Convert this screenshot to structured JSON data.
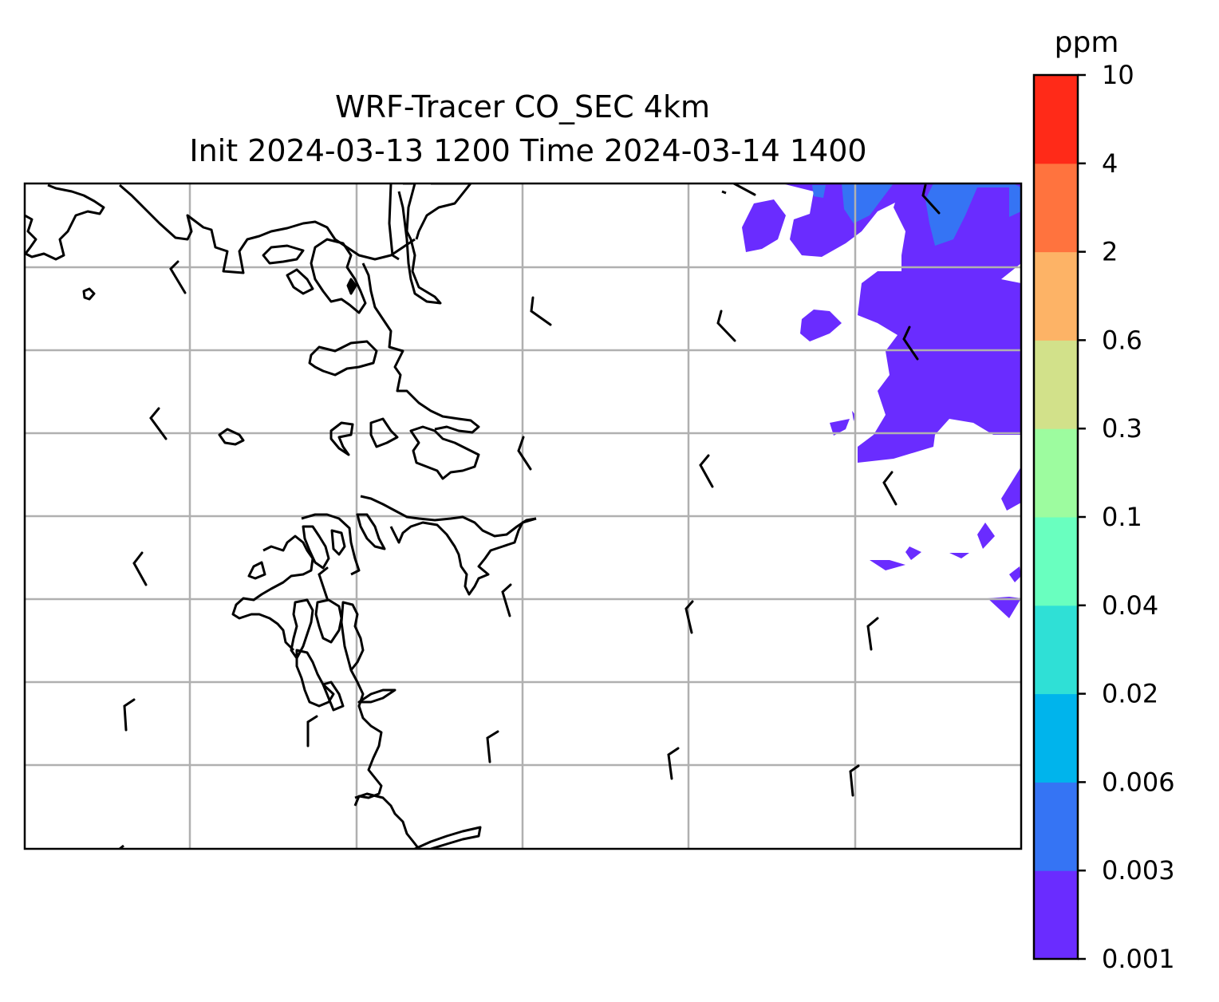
{
  "title": {
    "line1": "WRF-Tracer CO_SEC 4km",
    "line2": "Init 2024-03-13 1200 Time 2024-03-14 1400"
  },
  "map": {
    "gridlines": true,
    "coastline_color": "#000000",
    "gridline_color": "#b0b0b0",
    "barb_count": 21
  },
  "colorbar": {
    "units": "ppm",
    "levels": [
      "0.001",
      "0.003",
      "0.006",
      "0.02",
      "0.04",
      "0.1",
      "0.3",
      "0.6",
      "2",
      "4",
      "10"
    ],
    "colors": [
      "#6a2cff",
      "#3574f4",
      "#00b4ec",
      "#2fe0d6",
      "#69ffbf",
      "#9dfc9f",
      "#d2e18a",
      "#fdb366",
      "#ff733e",
      "#ff2a18"
    ]
  },
  "chart_data": {
    "type": "heatmap",
    "variable": "CO_SEC",
    "units": "ppm",
    "title": "WRF-Tracer CO_SEC 4km\nInit 2024-03-13 1200 Time 2024-03-14 1400",
    "levels": [
      0.001,
      0.003,
      0.006,
      0.02,
      0.04,
      0.1,
      0.3,
      0.6,
      2,
      4,
      10
    ],
    "legend": "right colorbar",
    "observed_range": [
      0.001,
      0.006
    ],
    "observed_range_location": "east edge of domain; 0.003-0.006 band only at top-right"
  }
}
